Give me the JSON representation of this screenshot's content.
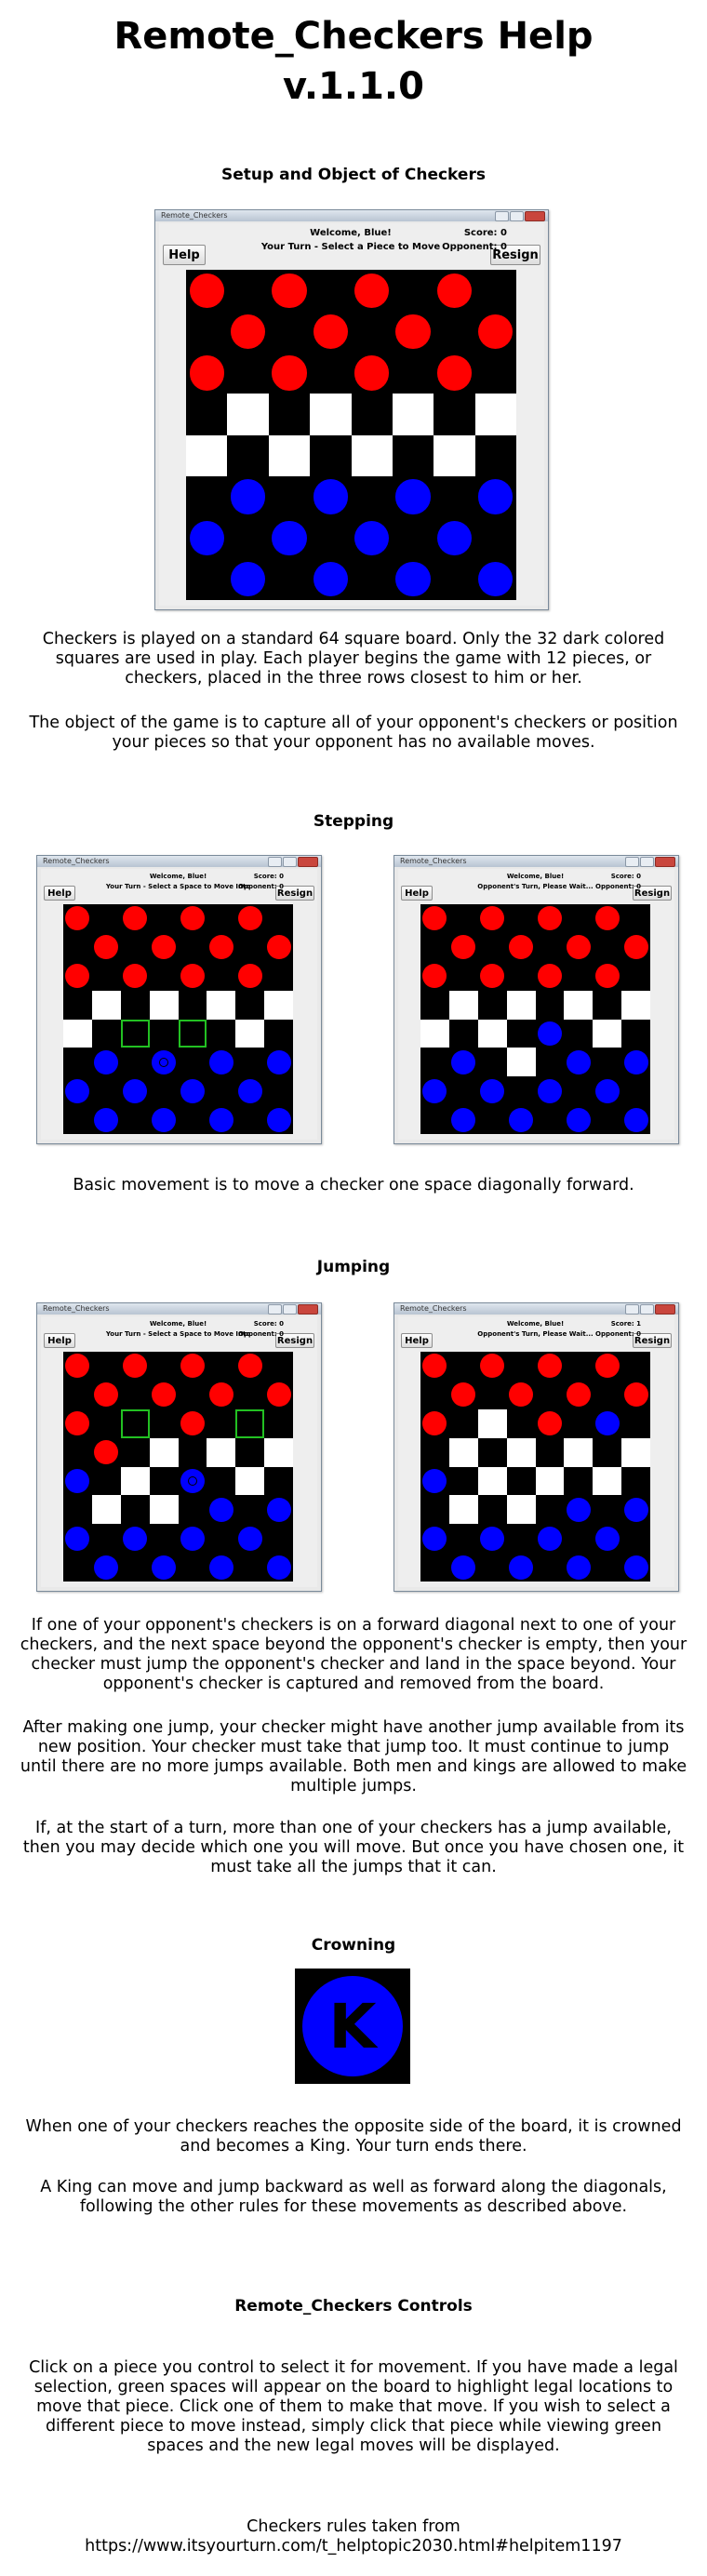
{
  "doc": {
    "title_line1": "Remote_Checkers Help",
    "title_line2": "v.1.1.0"
  },
  "colors": {
    "red_piece": "#ff0000",
    "blue_piece": "#0000ff",
    "dark_square": "#000000",
    "light_square": "#ffffff",
    "highlight": "#22c022"
  },
  "sections": {
    "setup": {
      "heading": "Setup and Object of Checkers",
      "p1": "Checkers is played on a standard 64 square board. Only the 32 dark colored squares are used in play. Each player begins the game with 12 pieces, or checkers, placed in the three rows closest to him or her.",
      "p2": "The object of the game is to capture all of your opponent's checkers or position your pieces so that your opponent has no available moves."
    },
    "stepping": {
      "heading": "Stepping",
      "p1": "Basic movement is to move a checker one space diagonally forward."
    },
    "jumping": {
      "heading": "Jumping",
      "p1": "If one of your opponent's checkers is on a forward diagonal next to one of your checkers, and the next space beyond the opponent's checker is empty, then your checker must jump the opponent's checker and land in the space beyond. Your opponent's checker is captured and removed from the board.",
      "p2": "After making one jump, your checker might have another jump available from its new position. Your checker must take that jump too. It must continue to jump until there are no more jumps available. Both men and kings are allowed to make multiple jumps.",
      "p3": "If, at the start of a turn, more than one of your checkers has a jump available, then you may decide which one you will move. But once you have chosen one, it must take all the jumps that it can."
    },
    "crowning": {
      "heading": "Crowning",
      "king_letter": "K",
      "p1": "When one of your checkers reaches the opposite side of the board, it is crowned and becomes a King. Your turn ends there.",
      "p2": "A King can move and jump backward as well as forward along the diagonals, following the other rules for these movements as described above."
    },
    "controls": {
      "heading": "Remote_Checkers Controls",
      "p1": "Click on a piece you control to select it for movement.  If you have made a legal selection, green spaces will appear on the board to highlight legal locations to move that piece.  Click one of them to make that move.  If you wish to select a different piece to move instead, simply click that piece while viewing green spaces and the new legal moves will be displayed."
    },
    "footer": {
      "line1": "Checkers rules taken from",
      "line2": "https://www.itsyourturn.com/t_helptopic2030.html#helpitem1197"
    }
  },
  "screens": [
    {
      "window_title": "Remote_Checkers",
      "help_label": "Help",
      "resign_label": "Resign",
      "welcome": "Welcome, Blue!",
      "turn": "Your Turn - Select a Piece to Move",
      "score_text": "Score: 0",
      "opponent_text": "Opponent: 0",
      "board": [
        "RKRKRKRK",
        "KRKRKRKR",
        "RKRKRKRK",
        "KWKWKWKW",
        "WKWKWKWK",
        "KBKBKBKB",
        "BKBKBKBK",
        "KBKBKBKB"
      ]
    },
    {
      "window_title": "Remote_Checkers",
      "help_label": "Help",
      "resign_label": "Resign",
      "welcome": "Welcome, Blue!",
      "turn": "Your Turn - Select a Space to Move Into",
      "score_text": "Score: 0",
      "opponent_text": "Opponent: 0",
      "board": [
        "RKRKRKRK",
        "KRKRKRKR",
        "RKRKRKRK",
        "KWKWKWKW",
        "WKGKGKWK",
        "KBKSKBKB",
        "BKBKBKBK",
        "KBKBKBKB"
      ]
    },
    {
      "window_title": "Remote_Checkers",
      "help_label": "Help",
      "resign_label": "Resign",
      "welcome": "Welcome, Blue!",
      "turn": "Opponent's Turn, Please Wait...",
      "score_text": "Score: 0",
      "opponent_text": "Opponent: 0",
      "board": [
        "RKRKRKRK",
        "KRKRKRKR",
        "RKRKRKRK",
        "KWKWKWKW",
        "WKWKBKWK",
        "KBKWKBKB",
        "BKBKBKBK",
        "KBKBKBKB"
      ]
    },
    {
      "window_title": "Remote_Checkers",
      "help_label": "Help",
      "resign_label": "Resign",
      "welcome": "Welcome, Blue!",
      "turn": "Your Turn - Select a Space to Move Into",
      "score_text": "Score: 0",
      "opponent_text": "Opponent: 0",
      "board": [
        "RKRKRKRK",
        "KRKRKRKR",
        "RKGKRKGK",
        "KRKWKWKW",
        "BKWKSKWK",
        "KWKWKBKB",
        "BKBKBKBK",
        "KBKBKBKB"
      ]
    },
    {
      "window_title": "Remote_Checkers",
      "help_label": "Help",
      "resign_label": "Resign",
      "welcome": "Welcome, Blue!",
      "turn": "Opponent's Turn, Please Wait...",
      "score_text": "Score: 1",
      "opponent_text": "Opponent: 0",
      "board": [
        "RKRKRKRK",
        "KRKRKRKR",
        "RKWKRKBK",
        "KWKWKWKW",
        "BKWKWKWK",
        "KWKWKBKB",
        "BKBKBKBK",
        "KBKBKBKB"
      ]
    }
  ]
}
